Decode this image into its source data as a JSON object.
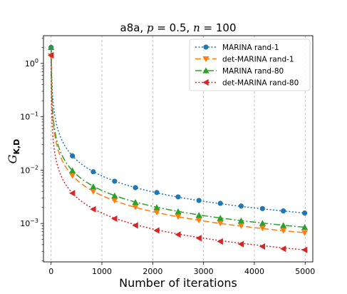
{
  "chart_data": {
    "type": "line",
    "title": "a8a, p = 0.5, n = 100",
    "xlabel": "Number of iterations",
    "ylabel": "G_{K,D}",
    "xlim": [
      -150,
      5150
    ],
    "ylim_log10": [
      -3.72,
      0.52
    ],
    "y_scale": "log",
    "x_ticks": [
      0,
      1000,
      2000,
      3000,
      4000,
      5000
    ],
    "y_ticks": [
      {
        "value": 1,
        "label": "10^0"
      },
      {
        "value": 0.1,
        "label": "10^-1"
      },
      {
        "value": 0.01,
        "label": "10^-2"
      },
      {
        "value": 0.001,
        "label": "10^-3"
      }
    ],
    "grid": "x-dashed",
    "legend_position": "top-right",
    "series": [
      {
        "name": "MARINA rand-1",
        "color": "#1f77b4",
        "dash": "2,2.5",
        "marker": "circle",
        "x": [
          0,
          420,
          830,
          1250,
          1660,
          2080,
          2500,
          2910,
          3330,
          3740,
          4160,
          4570,
          4990
        ],
        "y": [
          2.0,
          0.0185,
          0.0093,
          0.0062,
          0.0047,
          0.0038,
          0.00315,
          0.0027,
          0.00238,
          0.00212,
          0.0019,
          0.00172,
          0.00157
        ]
      },
      {
        "name": "det-MARINA rand-1",
        "color": "#ff7f0e",
        "dash": "8,4",
        "marker": "triangle-down",
        "x": [
          0,
          420,
          830,
          1250,
          1660,
          2080,
          2500,
          2910,
          3330,
          3740,
          4160,
          4570,
          4990
        ],
        "y": [
          1.38,
          0.0079,
          0.004,
          0.0027,
          0.00205,
          0.00163,
          0.00135,
          0.00116,
          0.00102,
          0.00091,
          0.00082,
          0.00074,
          0.00067
        ]
      },
      {
        "name": "MARINA rand-80",
        "color": "#2ca02c",
        "dash": "9,3,2,3",
        "marker": "triangle-up",
        "x": [
          0,
          420,
          830,
          1250,
          1660,
          2080,
          2500,
          2910,
          3330,
          3740,
          4160,
          4570,
          4990
        ],
        "y": [
          2.0,
          0.0098,
          0.0049,
          0.0033,
          0.0025,
          0.002,
          0.00167,
          0.00143,
          0.00126,
          0.00112,
          0.00101,
          0.00092,
          0.00085
        ]
      },
      {
        "name": "det-MARINA rand-80",
        "color": "#d62728",
        "dash": "2,2.5",
        "marker": "triangle-left",
        "x": [
          0,
          420,
          830,
          1250,
          1660,
          2080,
          2500,
          2910,
          3330,
          3740,
          4160,
          4570,
          4990
        ],
        "y": [
          1.42,
          0.0037,
          0.00185,
          0.00123,
          0.00092,
          0.00074,
          0.00062,
          0.00053,
          0.00046,
          0.00041,
          0.00037,
          0.000335,
          0.00032
        ]
      }
    ]
  }
}
